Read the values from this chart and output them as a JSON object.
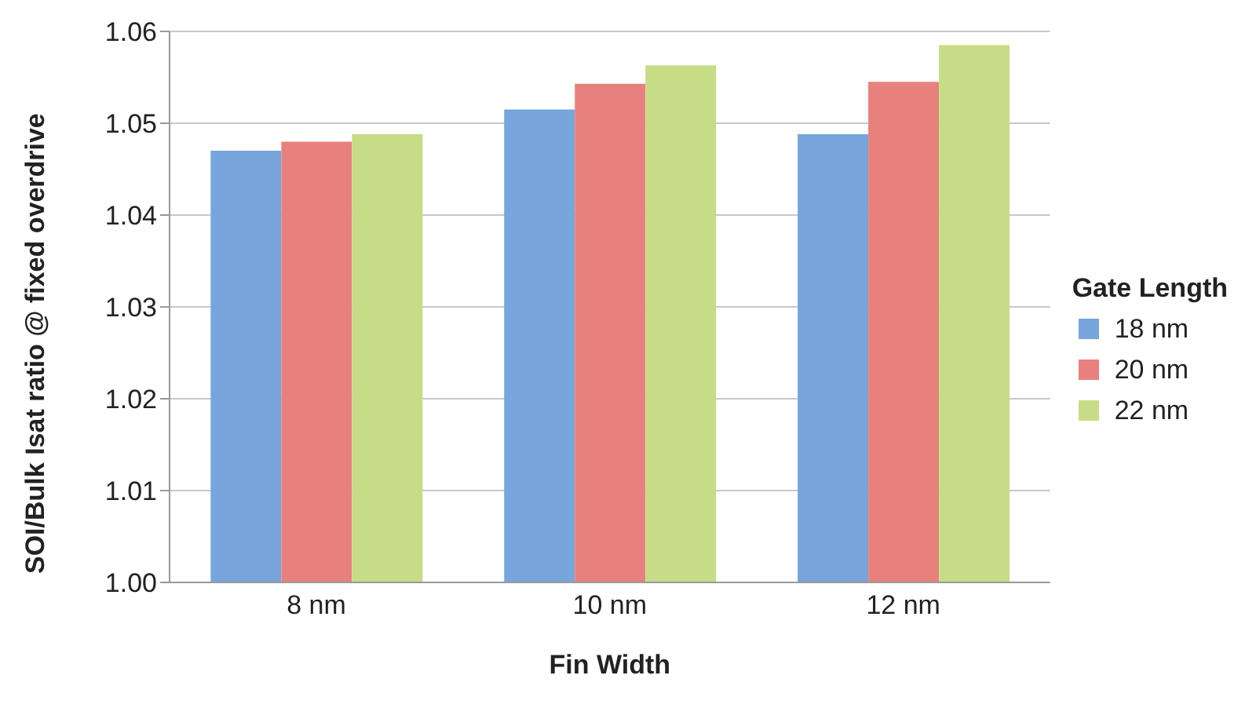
{
  "chart_data": {
    "type": "bar",
    "xlabel": "Fin Width",
    "ylabel": "SOI/Bulk Isat ratio @ fixed overdrive",
    "legend_title": "Gate Length",
    "categories": [
      "8 nm",
      "10 nm",
      "12 nm"
    ],
    "series": [
      {
        "name": "18 nm",
        "color": "#77a5dc",
        "values": [
          1.047,
          1.0515,
          1.0488
        ]
      },
      {
        "name": "20 nm",
        "color": "#e8817d",
        "values": [
          1.048,
          1.0543,
          1.0545
        ]
      },
      {
        "name": "22 nm",
        "color": "#c6dc86",
        "values": [
          1.0488,
          1.0563,
          1.0585
        ]
      }
    ],
    "ylim": [
      1.0,
      1.06
    ],
    "yticks": [
      {
        "value": 1.0,
        "label": "1.00"
      },
      1.01,
      1.02,
      1.03,
      1.04,
      1.05,
      1.06
    ],
    "grid": "y",
    "legend": "right"
  }
}
